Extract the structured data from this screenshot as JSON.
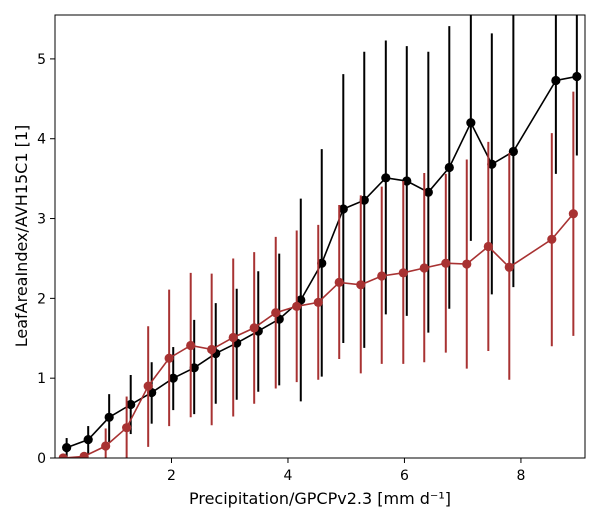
{
  "chart_data": {
    "type": "line",
    "title": "",
    "xlabel": "Precipitation/GPCPv2.3 [mm d⁻¹]",
    "ylabel": "LeafAreaIndex/AVH15C1 [1]",
    "xlim": [
      0.0,
      9.1
    ],
    "ylim": [
      0.0,
      5.55
    ],
    "xticks": [
      2,
      4,
      6,
      8
    ],
    "yticks": [
      0,
      1,
      2,
      3,
      4,
      5
    ],
    "grid": false,
    "legend": "none",
    "series": [
      {
        "color": "#000000",
        "points": [
          {
            "x": 0.2,
            "y": 0.13,
            "lo": 0.0,
            "hi": 0.25
          },
          {
            "x": 0.57,
            "y": 0.23,
            "lo": 0.05,
            "hi": 0.4
          },
          {
            "x": 0.93,
            "y": 0.51,
            "lo": 0.2,
            "hi": 0.8
          },
          {
            "x": 1.3,
            "y": 0.67,
            "lo": 0.3,
            "hi": 1.04
          },
          {
            "x": 1.66,
            "y": 0.82,
            "lo": 0.43,
            "hi": 1.2
          },
          {
            "x": 2.03,
            "y": 1.0,
            "lo": 0.6,
            "hi": 1.39
          },
          {
            "x": 2.39,
            "y": 1.13,
            "lo": 0.55,
            "hi": 1.73
          },
          {
            "x": 2.76,
            "y": 1.31,
            "lo": 0.68,
            "hi": 1.94
          },
          {
            "x": 3.12,
            "y": 1.44,
            "lo": 0.73,
            "hi": 2.12
          },
          {
            "x": 3.49,
            "y": 1.59,
            "lo": 0.83,
            "hi": 2.34
          },
          {
            "x": 3.85,
            "y": 1.74,
            "lo": 0.91,
            "hi": 2.56
          },
          {
            "x": 4.22,
            "y": 1.98,
            "lo": 0.71,
            "hi": 3.25
          },
          {
            "x": 4.58,
            "y": 2.44,
            "lo": 1.02,
            "hi": 3.87
          },
          {
            "x": 4.95,
            "y": 3.12,
            "lo": 1.44,
            "hi": 4.81
          },
          {
            "x": 5.31,
            "y": 3.23,
            "lo": 1.38,
            "hi": 5.09
          },
          {
            "x": 5.68,
            "y": 3.51,
            "lo": 1.8,
            "hi": 5.23
          },
          {
            "x": 6.04,
            "y": 3.47,
            "lo": 1.78,
            "hi": 5.16
          },
          {
            "x": 6.41,
            "y": 3.33,
            "lo": 1.57,
            "hi": 5.09
          },
          {
            "x": 6.77,
            "y": 3.64,
            "lo": 1.87,
            "hi": 5.41
          },
          {
            "x": 7.14,
            "y": 4.2,
            "lo": 2.72,
            "hi": 5.6
          },
          {
            "x": 7.5,
            "y": 3.68,
            "lo": 2.05,
            "hi": 5.32
          },
          {
            "x": 7.87,
            "y": 3.84,
            "lo": 2.14,
            "hi": 5.55
          },
          {
            "x": 8.6,
            "y": 4.73,
            "lo": 3.56,
            "hi": 5.6
          },
          {
            "x": 8.96,
            "y": 4.78,
            "lo": 3.79,
            "hi": 5.6
          }
        ]
      },
      {
        "color": "#a83232",
        "points": [
          {
            "x": 0.14,
            "y": 0.0,
            "lo": 0.0,
            "hi": 0.03
          },
          {
            "x": 0.5,
            "y": 0.02,
            "lo": 0.0,
            "hi": 0.06
          },
          {
            "x": 0.87,
            "y": 0.15,
            "lo": 0.0,
            "hi": 0.37
          },
          {
            "x": 1.23,
            "y": 0.38,
            "lo": 0.0,
            "hi": 0.77
          },
          {
            "x": 1.6,
            "y": 0.9,
            "lo": 0.14,
            "hi": 1.65
          },
          {
            "x": 1.96,
            "y": 1.25,
            "lo": 0.4,
            "hi": 2.11
          },
          {
            "x": 2.33,
            "y": 1.41,
            "lo": 0.51,
            "hi": 2.32
          },
          {
            "x": 2.69,
            "y": 1.36,
            "lo": 0.41,
            "hi": 2.31
          },
          {
            "x": 3.06,
            "y": 1.51,
            "lo": 0.52,
            "hi": 2.5
          },
          {
            "x": 3.42,
            "y": 1.63,
            "lo": 0.68,
            "hi": 2.58
          },
          {
            "x": 3.79,
            "y": 1.82,
            "lo": 0.87,
            "hi": 2.77
          },
          {
            "x": 4.15,
            "y": 1.9,
            "lo": 0.95,
            "hi": 2.85
          },
          {
            "x": 4.52,
            "y": 1.95,
            "lo": 0.98,
            "hi": 2.92
          },
          {
            "x": 4.88,
            "y": 2.2,
            "lo": 1.24,
            "hi": 3.17
          },
          {
            "x": 5.25,
            "y": 2.17,
            "lo": 1.06,
            "hi": 3.29
          },
          {
            "x": 5.61,
            "y": 2.28,
            "lo": 1.18,
            "hi": 3.4
          },
          {
            "x": 5.98,
            "y": 2.32,
            "lo": 1.18,
            "hi": 3.47
          },
          {
            "x": 6.34,
            "y": 2.38,
            "lo": 1.2,
            "hi": 3.57
          },
          {
            "x": 6.71,
            "y": 2.44,
            "lo": 1.32,
            "hi": 3.56
          },
          {
            "x": 7.07,
            "y": 2.43,
            "lo": 1.12,
            "hi": 3.74
          },
          {
            "x": 7.44,
            "y": 2.65,
            "lo": 1.34,
            "hi": 3.96
          },
          {
            "x": 7.8,
            "y": 2.39,
            "lo": 0.98,
            "hi": 3.82
          },
          {
            "x": 8.53,
            "y": 2.74,
            "lo": 1.4,
            "hi": 4.07
          },
          {
            "x": 8.9,
            "y": 3.06,
            "lo": 1.53,
            "hi": 4.59
          }
        ]
      }
    ]
  }
}
